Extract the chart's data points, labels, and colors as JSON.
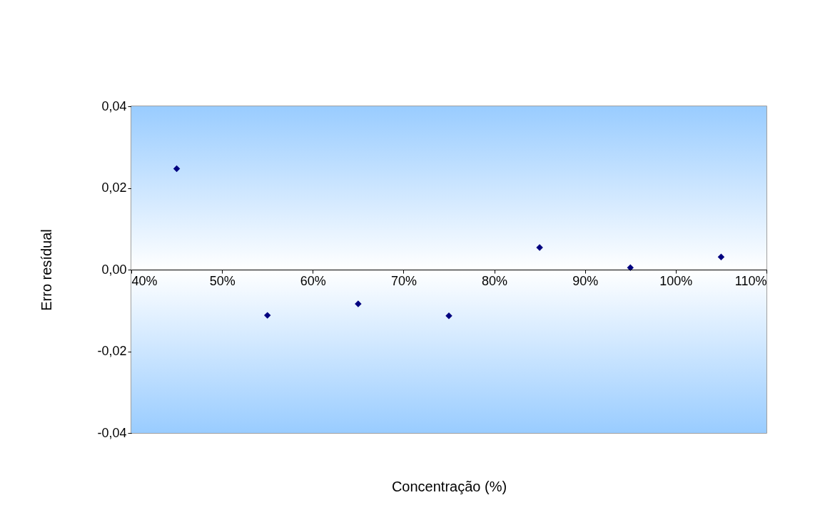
{
  "chart_data": {
    "type": "scatter",
    "xlabel": "Concentração (%)",
    "ylabel": "Erro resídual",
    "x": [
      45,
      55,
      65,
      75,
      85,
      95,
      105
    ],
    "series": [
      {
        "color": "#000080",
        "values": [
          0.0247,
          -0.0112,
          -0.0084,
          -0.0113,
          0.0054,
          0.0005,
          0.0031
        ]
      }
    ],
    "xlim": [
      40,
      110
    ],
    "xticks": [
      {
        "value": 40,
        "label": "40%"
      },
      {
        "value": 50,
        "label": "50%"
      },
      {
        "value": 60,
        "label": "60%"
      },
      {
        "value": 70,
        "label": "70%"
      },
      {
        "value": 80,
        "label": "80%"
      },
      {
        "value": 90,
        "label": "90%"
      },
      {
        "value": 100,
        "label": "100%"
      },
      {
        "value": 110,
        "label": "110%"
      }
    ],
    "ylim": [
      -0.04,
      0.04
    ],
    "yticks": [
      {
        "value": -0.04,
        "label": "-0,04"
      },
      {
        "value": -0.02,
        "label": "-0,02"
      },
      {
        "value": 0,
        "label": "0,00"
      },
      {
        "value": 0.02,
        "label": "0,02"
      },
      {
        "value": 0.04,
        "label": "0,04"
      }
    ],
    "marker": "diamond",
    "grid": false
  }
}
